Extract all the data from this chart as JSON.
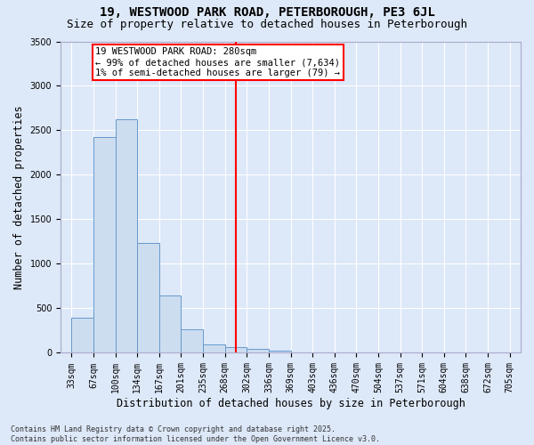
{
  "title": "19, WESTWOOD PARK ROAD, PETERBOROUGH, PE3 6JL",
  "subtitle": "Size of property relative to detached houses in Peterborough",
  "xlabel": "Distribution of detached houses by size in Peterborough",
  "ylabel": "Number of detached properties",
  "categories": [
    "33sqm",
    "67sqm",
    "100sqm",
    "134sqm",
    "167sqm",
    "201sqm",
    "235sqm",
    "268sqm",
    "302sqm",
    "336sqm",
    "369sqm",
    "403sqm",
    "436sqm",
    "470sqm",
    "504sqm",
    "537sqm",
    "571sqm",
    "604sqm",
    "638sqm",
    "672sqm",
    "705sqm"
  ],
  "bar_heights": [
    390,
    2420,
    2620,
    1230,
    640,
    260,
    90,
    60,
    40,
    20,
    0,
    0,
    0,
    0,
    0,
    0,
    0,
    0,
    0,
    0
  ],
  "property_label": "19 WESTWOOD PARK ROAD: 280sqm",
  "annotation_line1": "← 99% of detached houses are smaller (7,634)",
  "annotation_line2": "1% of semi-detached houses are larger (79) →",
  "vline_position": 7.5,
  "bar_color": "#ccddf0",
  "bar_edge_color": "#6699cc",
  "vline_color": "red",
  "annotation_box_edge_color": "red",
  "background_color": "#dde8f8",
  "grid_color": "#ffffff",
  "footer_line1": "Contains HM Land Registry data © Crown copyright and database right 2025.",
  "footer_line2": "Contains public sector information licensed under the Open Government Licence v3.0.",
  "ylim": [
    0,
    3500
  ],
  "title_fontsize": 10,
  "subtitle_fontsize": 9,
  "axis_label_fontsize": 8.5,
  "tick_fontsize": 7,
  "annotation_fontsize": 7.5,
  "footer_fontsize": 6
}
